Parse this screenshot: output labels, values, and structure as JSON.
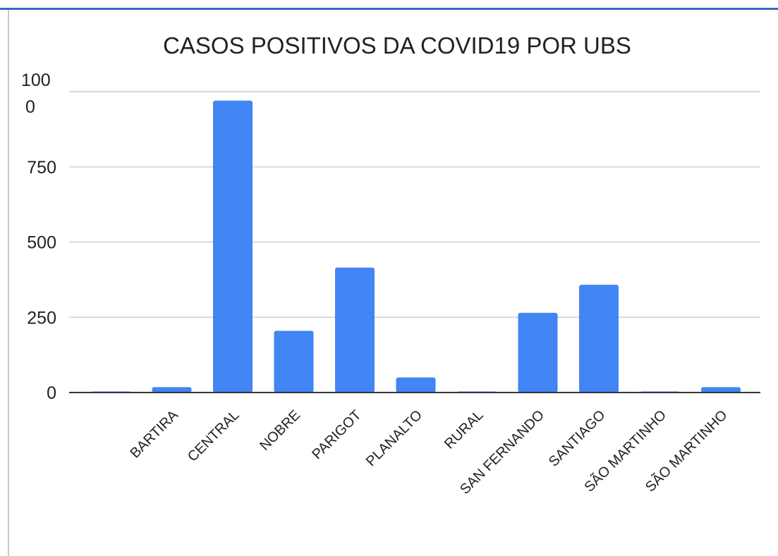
{
  "chart_data": {
    "type": "bar",
    "title": "CASOS POSITIVOS DA COVID19 POR UBS",
    "xlabel": "",
    "ylabel": "",
    "categories": [
      "",
      "BARTIRA",
      "CENTRAL",
      "NOBRE",
      "PARIGOT",
      "PLANALTO",
      "RURAL",
      "SAN FERNANDO",
      "SANTIAGO",
      "SÃO MARTINHO",
      "SÃO MARTINHO"
    ],
    "values": [
      0,
      18,
      970,
      205,
      415,
      50,
      0,
      265,
      358,
      0,
      18
    ],
    "yticks": [
      0,
      250,
      500,
      750,
      1000
    ],
    "ytick_labels": [
      "0",
      "250",
      "500",
      "750",
      "100\n0"
    ],
    "ylim": [
      0,
      1000
    ],
    "grid": true,
    "legend": "none",
    "bar_color": "#4285f4"
  }
}
